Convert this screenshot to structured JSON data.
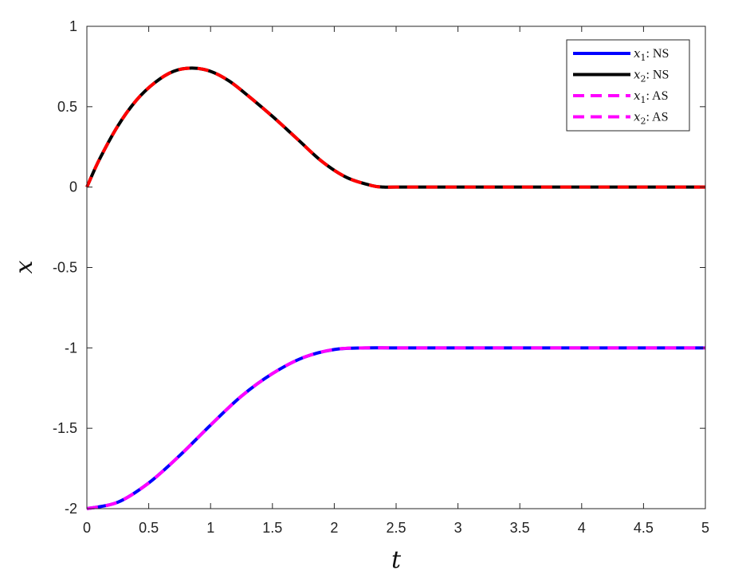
{
  "chart_data": {
    "type": "line",
    "title": "",
    "xlabel": "t",
    "ylabel": "x",
    "xlim": [
      0,
      5
    ],
    "ylim": [
      -2,
      1
    ],
    "xticks": [
      0,
      0.5,
      1,
      1.5,
      2,
      2.5,
      3,
      3.5,
      4,
      4.5,
      5
    ],
    "xtick_labels": [
      "0",
      "0.5",
      "1",
      "1.5",
      "2",
      "2.5",
      "3",
      "3.5",
      "4",
      "4.5",
      "5"
    ],
    "yticks": [
      1,
      0.5,
      0,
      -0.5,
      -1,
      -1.5,
      -2
    ],
    "ytick_labels": [
      "1",
      "0.5",
      "0",
      "-0.5",
      "-1",
      "-1.5",
      "-2"
    ],
    "grid": false,
    "legend_position": "top-right",
    "series": [
      {
        "name": "NS",
        "var": "x",
        "sub": "1",
        "color": "#0000ff",
        "style": "solid",
        "x": [
          0,
          0.25,
          0.5,
          0.75,
          1,
          1.25,
          1.5,
          1.75,
          2,
          2.25,
          2.5,
          3,
          3.5,
          4,
          4.5,
          5
        ],
        "y": [
          -2,
          -1.96,
          -1.84,
          -1.67,
          -1.48,
          -1.3,
          -1.16,
          -1.06,
          -1.01,
          -1.0,
          -1,
          -1,
          -1,
          -1,
          -1,
          -1
        ]
      },
      {
        "name": "NS",
        "var": "x",
        "sub": "2",
        "color": "#000000",
        "style": "solid",
        "x": [
          0,
          0.1,
          0.25,
          0.4,
          0.55,
          0.7,
          0.85,
          1.0,
          1.15,
          1.3,
          1.5,
          1.7,
          1.9,
          2.1,
          2.3,
          2.4,
          2.5,
          3,
          3.5,
          4,
          4.5,
          5
        ],
        "y": [
          0,
          0.17,
          0.38,
          0.54,
          0.65,
          0.72,
          0.74,
          0.72,
          0.66,
          0.57,
          0.44,
          0.3,
          0.16,
          0.06,
          0.01,
          0.0,
          0,
          0,
          0,
          0,
          0,
          0
        ]
      },
      {
        "name": "AS",
        "var": "x",
        "sub": "1",
        "color": "#ff00ff",
        "style": "dashed",
        "x": [
          0,
          0.25,
          0.5,
          0.75,
          1,
          1.25,
          1.5,
          1.75,
          2,
          2.25,
          2.5,
          3,
          3.5,
          4,
          4.5,
          5
        ],
        "y": [
          -2,
          -1.96,
          -1.84,
          -1.67,
          -1.48,
          -1.3,
          -1.16,
          -1.06,
          -1.01,
          -1.0,
          -1,
          -1,
          -1,
          -1,
          -1,
          -1
        ]
      },
      {
        "name": "AS",
        "var": "x",
        "sub": "2",
        "color": "#ff0000",
        "legend_color": "#ff00ff",
        "style": "dashed",
        "x": [
          0,
          0.1,
          0.25,
          0.4,
          0.55,
          0.7,
          0.85,
          1.0,
          1.15,
          1.3,
          1.5,
          1.7,
          1.9,
          2.1,
          2.3,
          2.4,
          2.5,
          3,
          3.5,
          4,
          4.5,
          5
        ],
        "y": [
          0,
          0.17,
          0.38,
          0.54,
          0.65,
          0.72,
          0.74,
          0.72,
          0.66,
          0.57,
          0.44,
          0.3,
          0.16,
          0.06,
          0.01,
          0.0,
          0,
          0,
          0,
          0,
          0,
          0
        ]
      }
    ]
  }
}
